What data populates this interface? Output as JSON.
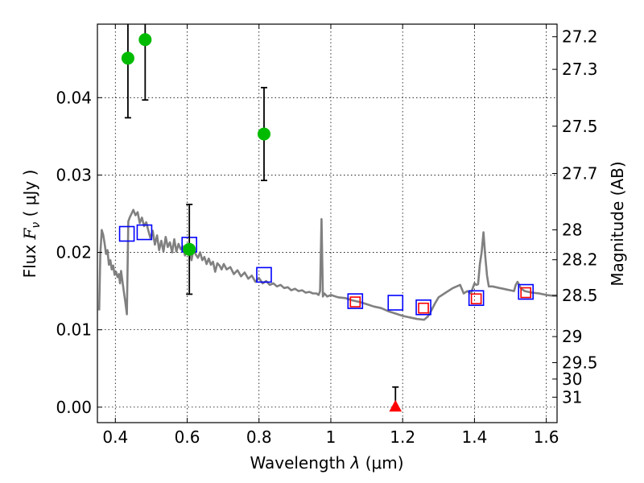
{
  "chart_data": {
    "type": "scatter",
    "xlabel_prefix": "Wavelength",
    "xlabel_symbol": "λ",
    "xlabel_unit": "(μm)",
    "ylabel_prefix": "Flux",
    "ylabel_symbol": "F",
    "ylabel_subscript": "ν",
    "ylabel_unit": "( μJy )",
    "ylabel_right": "Magnitude (AB)",
    "xlim": [
      0.35,
      1.63
    ],
    "ylim": [
      -0.002,
      0.0495
    ],
    "x_ticks": [
      0.4,
      0.6,
      0.8,
      1.0,
      1.2,
      1.4,
      1.6
    ],
    "x_tick_labels": [
      "0.4",
      "0.6",
      "0.8",
      "1",
      "1.2",
      "1.4",
      "1.6"
    ],
    "y_ticks": [
      0.0,
      0.01,
      0.02,
      0.03,
      0.04
    ],
    "y_tick_labels": [
      "0.00",
      "0.01",
      "0.02",
      "0.03",
      "0.04"
    ],
    "right_ticks": [
      {
        "flux": 0.04787,
        "label": "27.2"
      },
      {
        "flux": 0.04366,
        "label": "27.3"
      },
      {
        "flux": 0.03631,
        "label": "27.5"
      },
      {
        "flux": 0.0302,
        "label": "27.7"
      },
      {
        "flux": 0.02291,
        "label": "28"
      },
      {
        "flux": 0.01905,
        "label": "28.2"
      },
      {
        "flux": 0.01445,
        "label": "28.5"
      },
      {
        "flux": 0.00912,
        "label": "29"
      },
      {
        "flux": 0.00575,
        "label": "29.5"
      },
      {
        "flux": 0.00363,
        "label": "30"
      },
      {
        "flux": 0.00129,
        "label": "31"
      }
    ],
    "series": [
      {
        "name": "model SED",
        "kind": "line",
        "color": "#808080",
        "x": [
          0.355,
          0.358,
          0.362,
          0.366,
          0.37,
          0.374,
          0.378,
          0.382,
          0.386,
          0.39,
          0.394,
          0.398,
          0.402,
          0.406,
          0.41,
          0.413,
          0.416,
          0.42,
          0.424,
          0.428,
          0.432,
          0.436,
          0.44,
          0.445,
          0.45,
          0.456,
          0.462,
          0.468,
          0.474,
          0.48,
          0.486,
          0.492,
          0.498,
          0.504,
          0.51,
          0.516,
          0.522,
          0.528,
          0.534,
          0.54,
          0.546,
          0.552,
          0.558,
          0.564,
          0.57,
          0.576,
          0.582,
          0.588,
          0.594,
          0.6,
          0.606,
          0.612,
          0.618,
          0.624,
          0.63,
          0.636,
          0.642,
          0.648,
          0.654,
          0.66,
          0.666,
          0.672,
          0.678,
          0.684,
          0.69,
          0.696,
          0.702,
          0.71,
          0.72,
          0.73,
          0.74,
          0.75,
          0.76,
          0.77,
          0.78,
          0.79,
          0.8,
          0.81,
          0.82,
          0.83,
          0.84,
          0.85,
          0.86,
          0.87,
          0.88,
          0.89,
          0.9,
          0.91,
          0.92,
          0.93,
          0.94,
          0.95,
          0.96,
          0.966,
          0.97,
          0.974,
          0.978,
          0.982,
          0.99,
          1.0,
          1.02,
          1.04,
          1.06,
          1.08,
          1.1,
          1.12,
          1.14,
          1.16,
          1.18,
          1.2,
          1.22,
          1.24,
          1.26,
          1.27,
          1.28,
          1.29,
          1.3,
          1.32,
          1.34,
          1.36,
          1.37,
          1.38,
          1.39,
          1.4,
          1.405,
          1.41,
          1.415,
          1.42,
          1.425,
          1.43,
          1.435,
          1.44,
          1.45,
          1.46,
          1.47,
          1.48,
          1.49,
          1.5,
          1.51,
          1.515,
          1.52,
          1.53,
          1.54,
          1.56,
          1.58,
          1.6,
          1.62,
          1.63
        ],
        "y": [
          0.0125,
          0.0198,
          0.0229,
          0.0223,
          0.0212,
          0.0198,
          0.0203,
          0.0184,
          0.019,
          0.0178,
          0.0183,
          0.0171,
          0.0175,
          0.0168,
          0.0172,
          0.016,
          0.0176,
          0.0162,
          0.0148,
          0.0135,
          0.012,
          0.024,
          0.0245,
          0.025,
          0.0255,
          0.0248,
          0.0252,
          0.0238,
          0.0245,
          0.0234,
          0.0239,
          0.0228,
          0.0218,
          0.0228,
          0.021,
          0.0222,
          0.0203,
          0.0215,
          0.0201,
          0.022,
          0.0207,
          0.0213,
          0.02,
          0.0217,
          0.0201,
          0.0211,
          0.0204,
          0.0208,
          0.0196,
          0.021,
          0.0203,
          0.019,
          0.0205,
          0.0197,
          0.0193,
          0.02,
          0.019,
          0.0194,
          0.0185,
          0.0192,
          0.0184,
          0.0188,
          0.0175,
          0.0186,
          0.0183,
          0.0178,
          0.0185,
          0.0178,
          0.0181,
          0.0172,
          0.0177,
          0.0169,
          0.0174,
          0.0166,
          0.017,
          0.0162,
          0.0167,
          0.016,
          0.0163,
          0.0158,
          0.016,
          0.0156,
          0.0158,
          0.0154,
          0.0155,
          0.0151,
          0.0153,
          0.015,
          0.0151,
          0.0148,
          0.0149,
          0.0147,
          0.0147,
          0.0145,
          0.015,
          0.0243,
          0.0143,
          0.0147,
          0.0143,
          0.0145,
          0.0142,
          0.0141,
          0.0138,
          0.0136,
          0.0133,
          0.013,
          0.0128,
          0.0124,
          0.0121,
          0.0118,
          0.0116,
          0.0114,
          0.0113,
          0.0117,
          0.0125,
          0.0134,
          0.0142,
          0.0148,
          0.0154,
          0.0158,
          0.0147,
          0.015,
          0.0147,
          0.016,
          0.0158,
          0.0159,
          0.0185,
          0.02,
          0.0226,
          0.0195,
          0.017,
          0.0156,
          0.0156,
          0.0155,
          0.0154,
          0.0153,
          0.0152,
          0.0151,
          0.015,
          0.0158,
          0.0162,
          0.0153,
          0.015,
          0.0148,
          0.0147,
          0.0145,
          0.0144,
          0.0144
        ]
      },
      {
        "name": "model photometry",
        "kind": "open-square",
        "color": "#ff0000",
        "size": 12,
        "x": [
          1.068,
          1.258,
          1.405,
          1.543
        ],
        "y": [
          0.0136,
          0.0128,
          0.014,
          0.0148
        ]
      },
      {
        "name": "observed photometry",
        "kind": "open-square",
        "color": "#0000ff",
        "size": 18,
        "x": [
          0.432,
          0.481,
          0.606,
          0.814,
          1.068,
          1.18,
          1.258,
          1.405,
          1.543
        ],
        "y": [
          0.0224,
          0.0226,
          0.021,
          0.0171,
          0.0137,
          0.0135,
          0.0129,
          0.0141,
          0.0149
        ]
      },
      {
        "name": "measured flux",
        "kind": "filled-circle",
        "color": "#00bb00",
        "x": [
          0.435,
          0.483,
          0.606,
          0.814
        ],
        "y": [
          0.0451,
          0.0475,
          0.0204,
          0.0353
        ],
        "yerr_low": [
          0.0077,
          0.0078,
          0.0058,
          0.006
        ],
        "yerr_high": [
          0.0049,
          0.0025,
          0.0058,
          0.006
        ]
      },
      {
        "name": "upper limit",
        "kind": "triangle",
        "color": "#ff0000",
        "x": [
          1.18
        ],
        "y": [
          0.0
        ],
        "yerr_low": [
          0.0
        ],
        "yerr_high": [
          0.0026
        ]
      }
    ]
  }
}
